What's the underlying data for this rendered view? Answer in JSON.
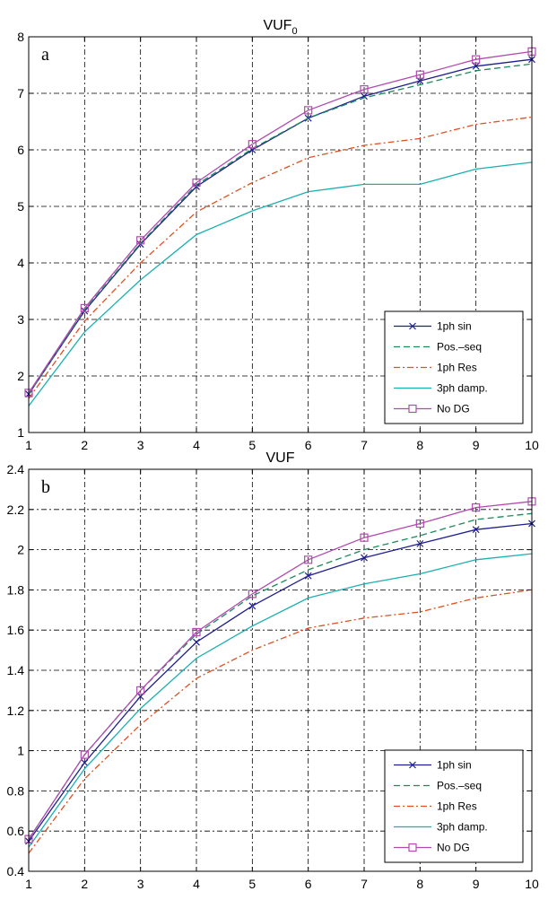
{
  "chart_data": [
    {
      "type": "line",
      "title": "VUF",
      "title_subscript": "0",
      "panel_label": "a",
      "xlim": [
        1,
        10
      ],
      "ylim": [
        1,
        8
      ],
      "x_ticks": [
        1,
        2,
        3,
        4,
        5,
        6,
        7,
        8,
        9,
        10
      ],
      "y_ticks": [
        1,
        2,
        3,
        4,
        5,
        6,
        7,
        8
      ],
      "grid": true,
      "legend_position": "bottom-right",
      "x": [
        1,
        2,
        3,
        4,
        5,
        6,
        7,
        8,
        9,
        10
      ],
      "series": [
        {
          "name": "1ph sin",
          "color": "#1f1f8f",
          "dash": "solid",
          "marker": "x",
          "values": [
            1.68,
            3.15,
            4.33,
            5.35,
            6.0,
            6.56,
            6.95,
            7.22,
            7.48,
            7.6
          ]
        },
        {
          "name": "Pos.–seq",
          "color": "#1a8a5a",
          "dash": "dashed",
          "marker": "none",
          "values": [
            1.68,
            3.17,
            4.35,
            5.38,
            6.02,
            6.56,
            6.92,
            7.15,
            7.4,
            7.52
          ]
        },
        {
          "name": "1ph Res",
          "color": "#e0501f",
          "dash": "dashdot",
          "marker": "none",
          "values": [
            1.6,
            2.97,
            4.0,
            4.9,
            5.42,
            5.86,
            6.08,
            6.2,
            6.45,
            6.58
          ]
        },
        {
          "name": "3ph damp.",
          "color": "#1ab0b0",
          "dash": "solid",
          "marker": "none",
          "values": [
            1.47,
            2.78,
            3.7,
            4.5,
            4.92,
            5.26,
            5.39,
            5.39,
            5.66,
            5.78
          ]
        },
        {
          "name": "No DG",
          "color": "#b04ab0",
          "dash": "solid",
          "marker": "square",
          "values": [
            1.7,
            3.2,
            4.4,
            5.42,
            6.1,
            6.7,
            7.07,
            7.33,
            7.6,
            7.74
          ]
        }
      ]
    },
    {
      "type": "line",
      "title": "VUF",
      "title_subscript": "",
      "panel_label": "b",
      "xlim": [
        1,
        10
      ],
      "ylim": [
        0.4,
        2.4
      ],
      "x_ticks": [
        1,
        2,
        3,
        4,
        5,
        6,
        7,
        8,
        9,
        10
      ],
      "y_ticks": [
        0.4,
        0.6,
        0.8,
        1,
        1.2,
        1.4,
        1.6,
        1.8,
        2,
        2.2,
        2.4
      ],
      "grid": true,
      "legend_position": "bottom-right",
      "x": [
        1,
        2,
        3,
        4,
        5,
        6,
        7,
        8,
        9,
        10
      ],
      "series": [
        {
          "name": "1ph sin",
          "color": "#1f1f8f",
          "dash": "solid",
          "marker": "x",
          "values": [
            0.55,
            0.94,
            1.27,
            1.54,
            1.72,
            1.87,
            1.96,
            2.03,
            2.1,
            2.13
          ]
        },
        {
          "name": "Pos.–seq",
          "color": "#1a8a5a",
          "dash": "dashed",
          "marker": "none",
          "values": [
            0.56,
            0.98,
            1.3,
            1.58,
            1.77,
            1.9,
            2.0,
            2.07,
            2.15,
            2.18
          ]
        },
        {
          "name": "1ph Res",
          "color": "#e0501f",
          "dash": "dashdot",
          "marker": "none",
          "values": [
            0.49,
            0.86,
            1.13,
            1.36,
            1.5,
            1.61,
            1.66,
            1.69,
            1.76,
            1.8
          ]
        },
        {
          "name": "3ph damp.",
          "color": "#1ab0b0",
          "dash": "solid",
          "marker": "none",
          "values": [
            0.52,
            0.91,
            1.21,
            1.46,
            1.62,
            1.76,
            1.83,
            1.88,
            1.95,
            1.98
          ]
        },
        {
          "name": "No DG",
          "color": "#b04ab0",
          "dash": "solid",
          "marker": "square",
          "values": [
            0.56,
            0.98,
            1.3,
            1.59,
            1.78,
            1.95,
            2.06,
            2.13,
            2.21,
            2.24
          ]
        }
      ]
    }
  ]
}
